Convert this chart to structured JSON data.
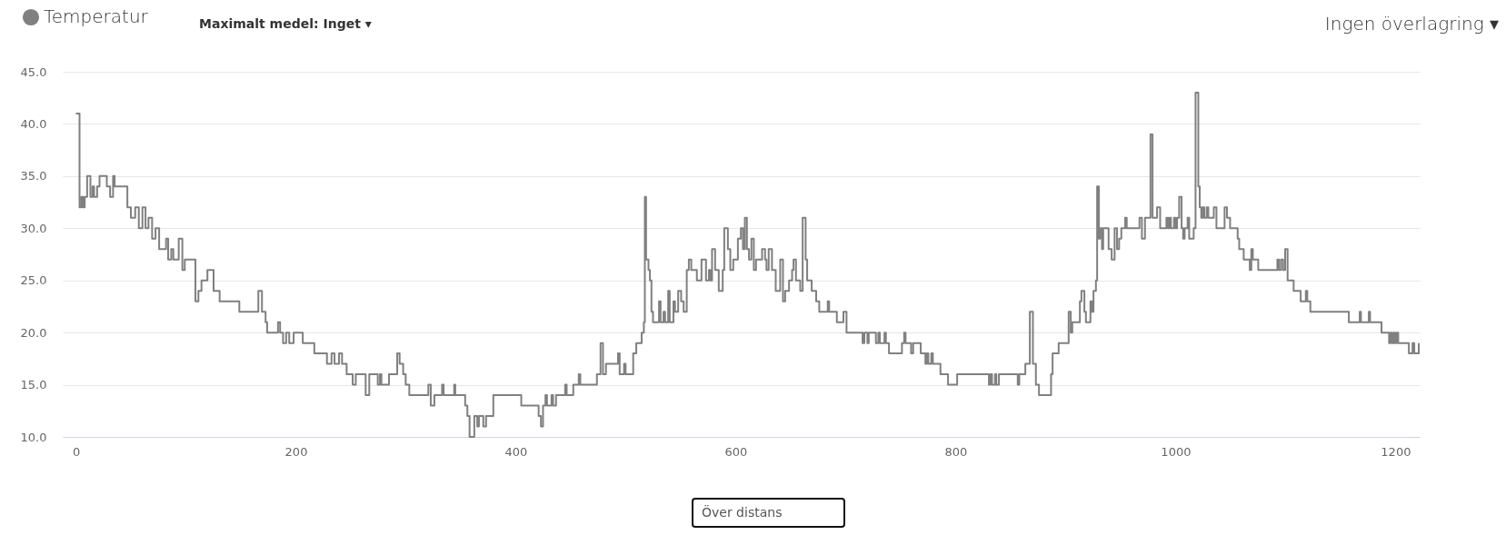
{
  "chart_data": {
    "type": "step",
    "series": [
      {
        "name": "Temperatur",
        "color": "#808080",
        "x": [
          0,
          3.3,
          5,
          6.5,
          8,
          10.2,
          13.2,
          15.1,
          16.5,
          19.3,
          21.5,
          28.1,
          31.1,
          33.8,
          35.2,
          46.8,
          50,
          53.9,
          57.2,
          60.5,
          63.3,
          66,
          69.3,
          72.4,
          75.7,
          82,
          83.9,
          86.7,
          88.6,
          93.5,
          96.8,
          99,
          108.7,
          111.4,
          114.2,
          119.6,
          125.2,
          130.7,
          148.6,
          165.9,
          169.2,
          172.5,
          173.9,
          183.8,
          185.7,
          188.4,
          191.2,
          194,
          198,
          206.3,
          216.8,
          228.3,
          232.5,
          235.2,
          239.3,
          242,
          246.2,
          251.7,
          254.5,
          263.5,
          266.8,
          274.5,
          276.5,
          277.8,
          284.7,
          292.2,
          294.4,
          297.6,
          299.9,
          303.2,
          320.5,
          322.7,
          326,
          333,
          334.4,
          344,
          345,
          354,
          356,
          358,
          362.3,
          365,
          366.5,
          370.5,
          373,
          379.6,
          405,
          420.8,
          422.9,
          424.8,
          427,
          428.4,
          432.5,
          433.9,
          436.6,
          444.9,
          446.3,
          452.3,
          457.3,
          458.7,
          473.8,
          477.1,
          479.3,
          482,
          493,
          494.5,
          498.5,
          499.9,
          506.8,
          509.6,
          514.5,
          516.5,
          517.4,
          518.5,
          520.7,
          522,
          523.4,
          524.8,
          530.3,
          531.7,
          534.4,
          535.8,
          538.6,
          540,
          543.4,
          544.8,
          547.7,
          550.4,
          552.7,
          555.5,
          557.4,
          559.6,
          564.7,
          568.9,
          573,
          575.7,
          577.1,
          578.5,
          581.3,
          584.6,
          588.2,
          589.6,
          592.9,
          595.1,
          597.8,
          602,
          604.7,
          606.6,
          608.3,
          610.2,
          612.1,
          614.3,
          616.5,
          618.5,
          624,
          626.7,
          628,
          630,
          633,
          636.4,
          640.5,
          643,
          645,
          648.5,
          651.3,
          652.6,
          654.8,
          658.7,
          660.9,
          663.6,
          665,
          669.1,
          673.2,
          676,
          683.7,
          685,
          692,
          698,
          700.8,
          715.4,
          717,
          719.8,
          721,
          727.5,
          729.7,
          731.1,
          735.3,
          736.6,
          739.4,
          751.2,
          753.2,
          754.5,
          759.5,
          761.4,
          768.3,
          772.5,
          773.8,
          775.2,
          777.9,
          779.3,
          786.2,
          793.1,
          801.4,
          830.3,
          831.7,
          833.1,
          835.8,
          837,
          839.4,
          856.5,
          857.9,
          863.4,
          867.5,
          870.3,
          873,
          875.8,
          886.8,
          888.2,
          893.7,
          902.8,
          904.7,
          906.1,
          913,
          914.4,
          917.1,
          918.5,
          922.6,
          924,
          925.4,
          927.6,
          928.7,
          930.3,
          931.4,
          933.1,
          934.2,
          939.1,
          941.9,
          944.6,
          946.8,
          948.7,
          950.7,
          954.2,
          955.6,
          967.2,
          969.4,
          972.2,
          977.2,
          979.1,
          983.2,
          986,
          991.7,
          993,
          994.4,
          995.8,
          998.6,
          1000,
          1001.4,
          1003.3,
          1005.5,
          1006.9,
          1008.3,
          1011,
          1012.4,
          1016.5,
          1018.2,
          1020.7,
          1022,
          1023.4,
          1024.8,
          1026.2,
          1028.4,
          1029.8,
          1034.8,
          1037.2,
          1044.6,
          1046.8,
          1049.6,
          1056.5,
          1057.9,
          1062,
          1067.5,
          1068.9,
          1070.3,
          1075.2,
          1092.6,
          1094,
          1095.9,
          1097.8,
          1099.7,
          1101.9,
          1107.4,
          1113.8,
          1118.5,
          1119.8,
          1122.6,
          1157.6,
          1167.5,
          1168.6,
          1175.8,
          1176.9,
          1187.3,
          1194.2,
          1195.6,
          1197,
          1198.4,
          1199.7,
          1201.1,
          1202.5,
          1212.2,
          1215.5,
          1217.1,
          1221.2
        ],
        "values": [
          41,
          32,
          33,
          32,
          33,
          35,
          33,
          34,
          33,
          34,
          35,
          34,
          33,
          35,
          34,
          32,
          31,
          32,
          30,
          32,
          30,
          31,
          29,
          30,
          28,
          29,
          27,
          28,
          27,
          29,
          26,
          27,
          23,
          24,
          25,
          26,
          24,
          23,
          22,
          24,
          22,
          21,
          20,
          21,
          20,
          19,
          20,
          19,
          20,
          19,
          18,
          17,
          18,
          17,
          18,
          17,
          16,
          15,
          16,
          14,
          16,
          15,
          16,
          15,
          16,
          18,
          17,
          16,
          15,
          14,
          15,
          13,
          14,
          15,
          14,
          15,
          14,
          13,
          12,
          10,
          12,
          11,
          12,
          11,
          12,
          14,
          13,
          12,
          11,
          13,
          14,
          13,
          14,
          13,
          14,
          15,
          14,
          15,
          16,
          15,
          16,
          19,
          16,
          17,
          18,
          16,
          17,
          16,
          18,
          19,
          20,
          21,
          33,
          27,
          26,
          25,
          22,
          21,
          23,
          21,
          22,
          21,
          24,
          21,
          23,
          22,
          24,
          23,
          22,
          26,
          27,
          26,
          25,
          27,
          25,
          26,
          25,
          28,
          26,
          24,
          26,
          30,
          28,
          26,
          27,
          29,
          30,
          28,
          31,
          28,
          27,
          29,
          26,
          27,
          28,
          27,
          26,
          28,
          26,
          24,
          27,
          23,
          24,
          25,
          26,
          27,
          25,
          24,
          31,
          27,
          25,
          24,
          23,
          22,
          23,
          22,
          21,
          22,
          20,
          19,
          20,
          19,
          20,
          19,
          20,
          19,
          20,
          19,
          18,
          19,
          20,
          19,
          18,
          19,
          18,
          17,
          18,
          17,
          18,
          17,
          16,
          15,
          16,
          15,
          16,
          15,
          16,
          15,
          16,
          15,
          16,
          17,
          22,
          17,
          15,
          14,
          16,
          18,
          19,
          22,
          20,
          21,
          23,
          24,
          22,
          21,
          23,
          22,
          24,
          25,
          34,
          29,
          30,
          28,
          30,
          28,
          27,
          30,
          28,
          29,
          30,
          31,
          30,
          31,
          29,
          31,
          39,
          31,
          32,
          30,
          31,
          30,
          31,
          30,
          31,
          30,
          31,
          33,
          30,
          29,
          30,
          31,
          29,
          30,
          43,
          34,
          32,
          31,
          32,
          31,
          32,
          31,
          32,
          30,
          32,
          31,
          30,
          29,
          28,
          27,
          26,
          28,
          27,
          26,
          27,
          26,
          27,
          26,
          28,
          25,
          24,
          23,
          24,
          23,
          22,
          21,
          22,
          21,
          22,
          21,
          20,
          19,
          20,
          19,
          20,
          19,
          20,
          19,
          18,
          19,
          18,
          19
        ]
      }
    ],
    "xlim": [
      -12,
      1222
    ],
    "xticks": [
      0,
      200,
      400,
      600,
      800,
      1000,
      1200
    ],
    "ylim": [
      10,
      45
    ],
    "yticks": [
      {
        "value": 10,
        "label": "10.0"
      },
      {
        "value": 15,
        "label": "15.0"
      },
      {
        "value": 20,
        "label": "20.0"
      },
      {
        "value": 25,
        "label": "25.0"
      },
      {
        "value": 30,
        "label": "30.0"
      },
      {
        "value": 35,
        "label": "35.0"
      },
      {
        "value": 40,
        "label": "40.0"
      },
      {
        "value": 45,
        "label": "45.0"
      }
    ],
    "grid": "y",
    "legend": "top left",
    "marker": "none",
    "line_style": "solid",
    "annotations": [
      "Maximalt medel: Inget ▾",
      "Ingen överlagring ▾",
      "Över distans"
    ]
  }
}
